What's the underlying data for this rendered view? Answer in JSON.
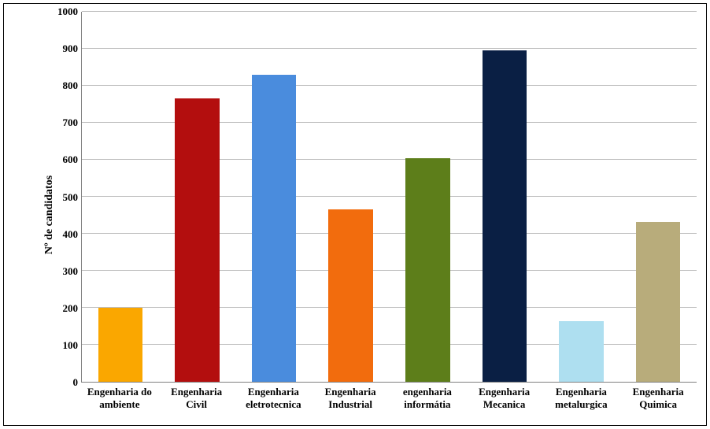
{
  "chart": {
    "type": "bar",
    "ylabel": "Nº de candidatos",
    "ylabel_fontsize": 14,
    "ylabel_fontweight": "bold",
    "ylim": [
      0,
      1000
    ],
    "ytick_step": 100,
    "yticks": [
      0,
      100,
      200,
      300,
      400,
      500,
      600,
      700,
      800,
      900,
      1000
    ],
    "tick_fontsize": 13,
    "tick_fontweight": "bold",
    "grid_color": "#bfbfbf",
    "axis_color": "#808080",
    "background_color": "#ffffff",
    "border_color": "#000000",
    "bar_width": 0.58,
    "font_family": "Times New Roman, Times, serif",
    "categories": [
      {
        "label_line1": "Engenharia do",
        "label_line2": "ambiente",
        "value": 200,
        "color": "#faa700"
      },
      {
        "label_line1": "Engenharia",
        "label_line2": "Civil",
        "value": 766,
        "color": "#b30e0e"
      },
      {
        "label_line1": "Engenharia",
        "label_line2": "eletrotecnica",
        "value": 830,
        "color": "#4a8cdd"
      },
      {
        "label_line1": "Engenharia",
        "label_line2": "Industrial",
        "value": 465,
        "color": "#f26c0d"
      },
      {
        "label_line1": "engenharia",
        "label_line2": "informátia",
        "value": 605,
        "color": "#5d7e1a"
      },
      {
        "label_line1": "Engenharia",
        "label_line2": "Mecanica",
        "value": 895,
        "color": "#0a1f44"
      },
      {
        "label_line1": "Engenharia",
        "label_line2": "metalurgica",
        "value": 163,
        "color": "#aedff0"
      },
      {
        "label_line1": "Engenharia",
        "label_line2": "Quimica",
        "value": 432,
        "color": "#b8ac7b"
      }
    ]
  }
}
